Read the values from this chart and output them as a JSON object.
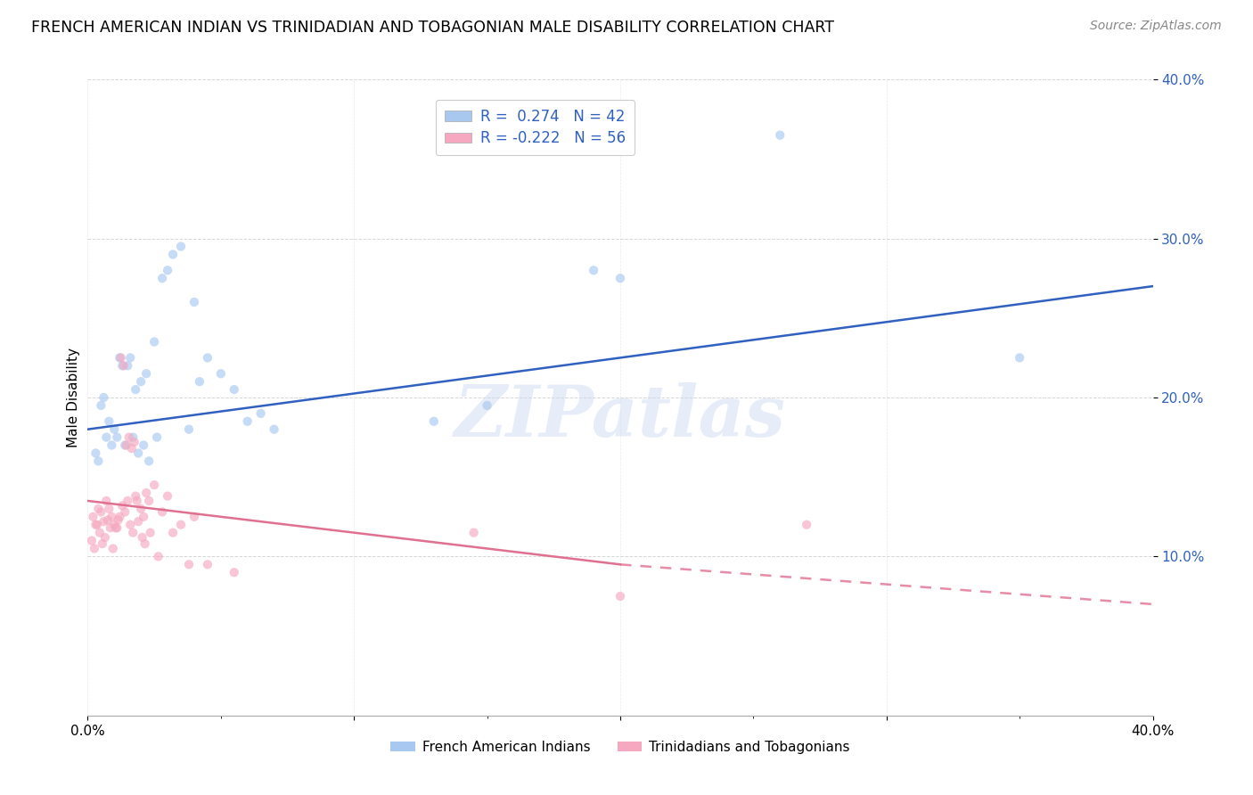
{
  "title": "FRENCH AMERICAN INDIAN VS TRINIDADIAN AND TOBAGONIAN MALE DISABILITY CORRELATION CHART",
  "source": "Source: ZipAtlas.com",
  "ylabel": "Male Disability",
  "watermark": "ZIPatlas",
  "legend1_label": "French American Indians",
  "legend2_label": "Trinidadians and Tobagonians",
  "R1": 0.274,
  "N1": 42,
  "R2": -0.222,
  "N2": 56,
  "blue_color": "#A8C8F0",
  "pink_color": "#F5A8C0",
  "line_blue": "#3060C0",
  "line_pink": "#E07090",
  "xlim": [
    0,
    40
  ],
  "ylim": [
    0,
    40
  ],
  "yticks": [
    10,
    20,
    30,
    40
  ],
  "blue_scatter_x": [
    1.2,
    1.5,
    2.2,
    2.5,
    3.2,
    3.5,
    0.5,
    0.6,
    0.8,
    1.0,
    1.3,
    1.6,
    1.8,
    2.0,
    2.8,
    4.0,
    4.5,
    5.0,
    6.0,
    0.3,
    0.4,
    0.7,
    0.9,
    1.1,
    1.4,
    1.7,
    1.9,
    2.1,
    2.3,
    2.6,
    3.0,
    3.8,
    4.2,
    5.5,
    6.5,
    13.0,
    15.0,
    20.0,
    26.0,
    35.0,
    19.0,
    7.0
  ],
  "blue_scatter_y": [
    22.5,
    22.0,
    21.5,
    23.5,
    29.0,
    29.5,
    19.5,
    20.0,
    18.5,
    18.0,
    22.0,
    22.5,
    20.5,
    21.0,
    27.5,
    26.0,
    22.5,
    21.5,
    18.5,
    16.5,
    16.0,
    17.5,
    17.0,
    17.5,
    17.0,
    17.5,
    16.5,
    17.0,
    16.0,
    17.5,
    28.0,
    18.0,
    21.0,
    20.5,
    19.0,
    18.5,
    19.5,
    27.5,
    36.5,
    22.5,
    28.0,
    18.0
  ],
  "pink_scatter_x": [
    0.2,
    0.3,
    0.4,
    0.5,
    0.6,
    0.7,
    0.8,
    0.9,
    1.0,
    1.1,
    1.2,
    1.3,
    1.4,
    1.5,
    1.6,
    1.7,
    1.8,
    1.9,
    2.0,
    2.1,
    2.2,
    2.3,
    2.5,
    2.8,
    3.0,
    3.2,
    3.5,
    4.0,
    4.5,
    5.5,
    0.15,
    0.25,
    0.35,
    0.45,
    0.55,
    0.65,
    0.75,
    0.85,
    0.95,
    1.05,
    1.15,
    1.25,
    1.35,
    1.45,
    1.55,
    1.65,
    1.75,
    1.85,
    2.05,
    2.15,
    2.35,
    2.65,
    3.8,
    14.5,
    20.0,
    27.0
  ],
  "pink_scatter_y": [
    12.5,
    12.0,
    13.0,
    12.8,
    12.2,
    13.5,
    13.0,
    12.5,
    12.0,
    11.8,
    12.5,
    13.2,
    12.8,
    13.5,
    12.0,
    11.5,
    13.8,
    12.2,
    13.0,
    12.5,
    14.0,
    13.5,
    14.5,
    12.8,
    13.8,
    11.5,
    12.0,
    12.5,
    9.5,
    9.0,
    11.0,
    10.5,
    12.0,
    11.5,
    10.8,
    11.2,
    12.3,
    11.8,
    10.5,
    11.8,
    12.3,
    22.5,
    22.0,
    17.0,
    17.5,
    16.8,
    17.2,
    13.5,
    11.2,
    10.8,
    11.5,
    10.0,
    9.5,
    11.5,
    7.5,
    12.0
  ],
  "blue_line_x0": 0,
  "blue_line_x1": 40,
  "blue_line_y0": 18.0,
  "blue_line_y1": 27.0,
  "pink_solid_x0": 0,
  "pink_solid_x1": 20,
  "pink_solid_y0": 13.5,
  "pink_solid_y1": 9.5,
  "pink_dash_x0": 20,
  "pink_dash_x1": 40,
  "pink_dash_y0": 9.5,
  "pink_dash_y1": 7.0,
  "background_color": "#ffffff",
  "grid_color": "#cccccc",
  "title_fontsize": 12.5,
  "source_fontsize": 10,
  "axis_label_fontsize": 11,
  "tick_fontsize": 11,
  "scatter_size": 55,
  "scatter_alpha": 0.65,
  "line_width": 1.8
}
